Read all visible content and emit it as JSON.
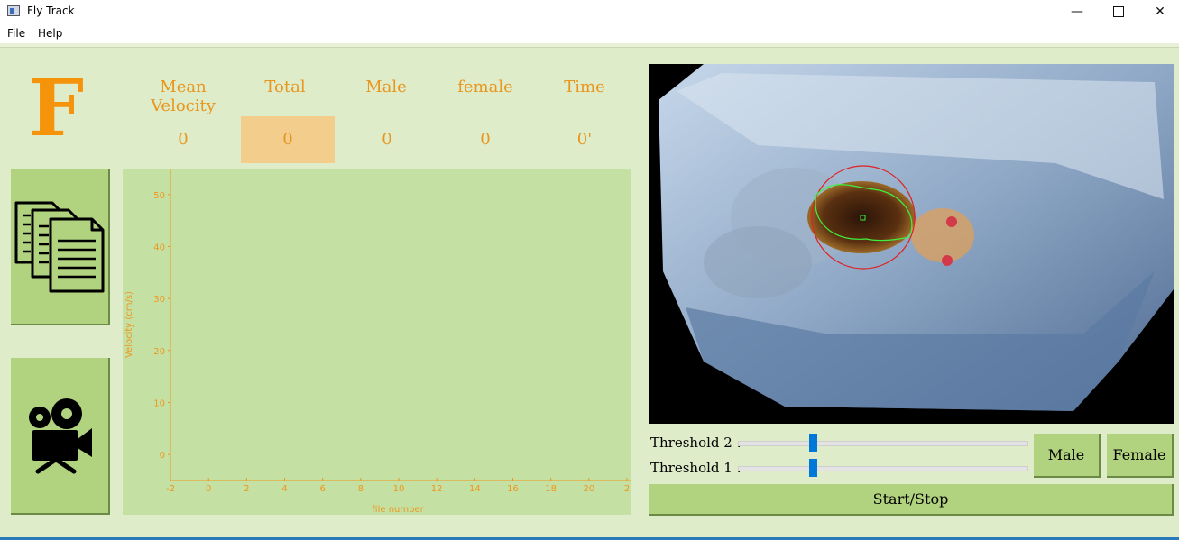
{
  "window": {
    "title": "Fly Track"
  },
  "menu": {
    "items": [
      "File",
      "Help"
    ]
  },
  "logo": {
    "letter": "F"
  },
  "stats": {
    "headers": [
      "Mean Velocity",
      "Total",
      "Male",
      "female",
      "Time"
    ],
    "values": [
      "0",
      "0",
      "0",
      "0",
      "0'"
    ]
  },
  "colors": {
    "accent": "#f5930b",
    "panel": "#b1d27f",
    "background": "#dfecc9",
    "chart_bg": "#c4e1a3"
  },
  "icons": {
    "open": "documents-icon",
    "camera": "video-camera-icon"
  },
  "chart_data": {
    "type": "scatter",
    "series": [],
    "xlabel": "file number",
    "ylabel": "Velocity (cm/s)",
    "xlim": [
      -2,
      22
    ],
    "ylim": [
      -5,
      55
    ],
    "xticks": [
      "-2",
      "0",
      "2",
      "4",
      "6",
      "8",
      "10",
      "12",
      "14",
      "16",
      "18",
      "20",
      "2"
    ],
    "yticks": [
      "0",
      "10",
      "20",
      "30",
      "40",
      "50"
    ],
    "ytick_values": [
      0,
      10,
      20,
      30,
      40,
      50
    ],
    "grid": false
  },
  "controls": {
    "threshold2": {
      "label": "Threshold 2 :",
      "value": 0.26
    },
    "threshold1": {
      "label": "Threshold 1 :",
      "value": 0.26
    },
    "male_button": "Male",
    "female_button": "Female",
    "start_stop_button": "Start/Stop"
  }
}
